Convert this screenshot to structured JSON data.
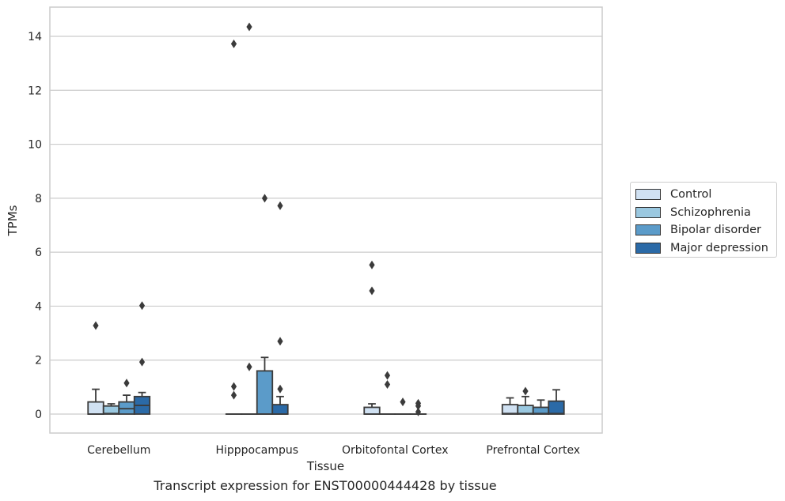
{
  "chart_data": {
    "type": "box",
    "title": "Transcript expression for ENST00000444428 by tissue",
    "xlabel": "Tissue",
    "ylabel": "TPMs",
    "ylim": [
      -0.7,
      15.1
    ],
    "yticks": [
      0,
      2,
      4,
      6,
      8,
      10,
      12,
      14
    ],
    "grid": true,
    "legend_position": "right",
    "categories": [
      "Cerebellum",
      "Hipppocampus",
      "Orbitofontal Cortex",
      "Prefrontal Cortex"
    ],
    "series": [
      {
        "name": "Control",
        "color": "#d0e1f2",
        "boxes": [
          {
            "q1": 0,
            "median": 0,
            "q3": 0.45,
            "whisker_low": 0,
            "whisker_high": 0.92,
            "outliers": [
              3.28
            ]
          },
          {
            "q1": 0,
            "median": 0,
            "q3": 0,
            "whisker_low": 0,
            "whisker_high": 0,
            "outliers": [
              13.72,
              1.02,
              0.7
            ]
          },
          {
            "q1": 0,
            "median": 0,
            "q3": 0.25,
            "whisker_low": 0,
            "whisker_high": 0.38,
            "outliers": [
              5.53,
              4.57
            ]
          },
          {
            "q1": 0,
            "median": 0.02,
            "q3": 0.35,
            "whisker_low": 0,
            "whisker_high": 0.6,
            "outliers": []
          }
        ]
      },
      {
        "name": "Schizophrenia",
        "color": "#9ac8e0",
        "boxes": [
          {
            "q1": 0,
            "median": 0.02,
            "q3": 0.3,
            "whisker_low": 0,
            "whisker_high": 0.38,
            "outliers": []
          },
          {
            "q1": 0,
            "median": 0,
            "q3": 0,
            "whisker_low": 0,
            "whisker_high": 0,
            "outliers": [
              14.35,
              1.75
            ]
          },
          {
            "q1": 0,
            "median": 0,
            "q3": 0,
            "whisker_low": 0,
            "whisker_high": 0,
            "outliers": [
              1.43,
              1.1
            ]
          },
          {
            "q1": 0,
            "median": 0.02,
            "q3": 0.32,
            "whisker_low": 0,
            "whisker_high": 0.65,
            "outliers": [
              0.85
            ]
          }
        ]
      },
      {
        "name": "Bipolar disorder",
        "color": "#5b9bc9",
        "boxes": [
          {
            "q1": 0,
            "median": 0.2,
            "q3": 0.45,
            "whisker_low": 0,
            "whisker_high": 0.7,
            "outliers": [
              1.15
            ]
          },
          {
            "q1": 0,
            "median": 0,
            "q3": 1.6,
            "whisker_low": 0,
            "whisker_high": 2.1,
            "outliers": [
              8.0
            ]
          },
          {
            "q1": 0,
            "median": 0,
            "q3": 0,
            "whisker_low": 0,
            "whisker_high": 0,
            "outliers": [
              0.45
            ]
          },
          {
            "q1": 0,
            "median": 0.02,
            "q3": 0.25,
            "whisker_low": 0,
            "whisker_high": 0.52,
            "outliers": []
          }
        ]
      },
      {
        "name": "Major depression",
        "color": "#2b6aa7",
        "boxes": [
          {
            "q1": 0,
            "median": 0.32,
            "q3": 0.65,
            "whisker_low": 0,
            "whisker_high": 0.8,
            "outliers": [
              4.02,
              1.93
            ]
          },
          {
            "q1": 0,
            "median": 0,
            "q3": 0.35,
            "whisker_low": 0,
            "whisker_high": 0.65,
            "outliers": [
              7.72,
              2.7,
              0.93
            ]
          },
          {
            "q1": 0,
            "median": 0,
            "q3": 0,
            "whisker_low": 0,
            "whisker_high": 0,
            "outliers": [
              0.4,
              0.3,
              0.08
            ]
          },
          {
            "q1": 0,
            "median": 0.02,
            "q3": 0.48,
            "whisker_low": 0,
            "whisker_high": 0.9,
            "outliers": []
          }
        ]
      }
    ]
  }
}
